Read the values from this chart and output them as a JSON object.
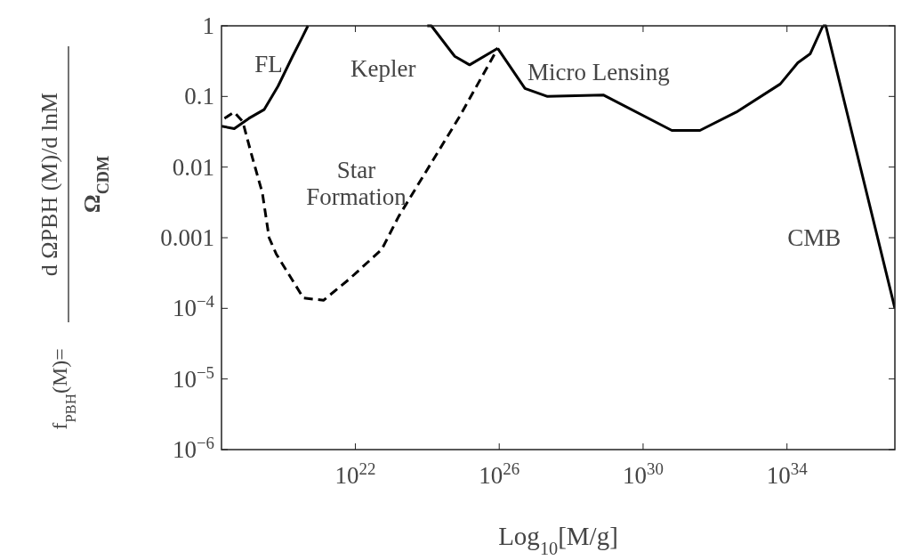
{
  "chart_data": {
    "type": "line",
    "xlabel": "Log$_{10}$[M/g]",
    "ylabel": "f$_{PBH}$(M)=d ΩPBH (M)/d lnM Ω$_{CDM}$",
    "log": "xy",
    "xlim": [
      1.9e+18,
      1e+37
    ],
    "ylim": [
      1e-06,
      1
    ],
    "xticks": [
      {
        "value": 1e+22,
        "label": "10$^{22}$"
      },
      {
        "value": 1e+26,
        "label": "10$^{26}$"
      },
      {
        "value": 1e+30,
        "label": "10$^{30}$"
      },
      {
        "value": 1e+34,
        "label": "10$^{34}$"
      }
    ],
    "yticks": [
      {
        "value": 1e-06,
        "label": "10$^{−6}$"
      },
      {
        "value": 1e-05,
        "label": "10$^{−5}$"
      },
      {
        "value": 0.0001,
        "label": "10$^{−4}$"
      },
      0.001,
      0.01,
      0.1,
      1
    ],
    "series": [
      {
        "name": "FL",
        "color": "#000000",
        "line_style": "solid",
        "x": [
          1.9e+18,
          4.3e+18,
          1.1e+19,
          2.9e+19,
          7.1e+19,
          1.8e+20,
          3.2e+20,
          4.8e+20
        ],
        "values": [
          0.038,
          0.035,
          0.049,
          0.065,
          0.14,
          0.37,
          0.66,
          1
        ]
      },
      {
        "name": "Kepler",
        "color": "#000000",
        "line_style": "solid",
        "x": [
          1e+24,
          1.3e+24,
          5.8e+24,
          1.5e+25,
          9.1e+25
        ],
        "values": [
          1,
          1,
          0.37,
          0.28,
          0.48
        ]
      },
      {
        "name": "Micro Lensing",
        "color": "#000000",
        "line_style": "solid",
        "x": [
          9.1e+25,
          5.2e+26,
          2.2e+27,
          7.8e+28,
          6.3e+30,
          3.8e+31,
          3.9e+32,
          6.5e+33,
          2e+34,
          4.4e+34,
          1e+35
        ],
        "values": [
          0.48,
          0.13,
          0.1,
          0.105,
          0.033,
          0.033,
          0.06,
          0.15,
          0.3,
          0.4,
          1
        ]
      },
      {
        "name": "CMB",
        "color": "#000000",
        "line_style": "solid",
        "x": [
          1e+35,
          1.2e+35,
          1e+37
        ],
        "values": [
          1,
          1,
          0.0001
        ]
      },
      {
        "name": "Star\nFormation",
        "color": "#000000",
        "line_style": "dashed",
        "x": [
          2.3e+18,
          4.3e+18,
          7.4e+18,
          1.3e+19,
          2.6e+19,
          4e+19,
          6.3e+19,
          3.6e+20,
          1.3e+21,
          6.8e+21,
          5.4e+22,
          1.6e+23,
          8.1e+24,
          9.1e+25
        ],
        "values": [
          0.049,
          0.06,
          0.044,
          0.015,
          0.0043,
          0.001,
          0.00059,
          0.00014,
          0.00013,
          0.00026,
          0.00068,
          0.002,
          0.053,
          0.48
        ]
      }
    ]
  }
}
